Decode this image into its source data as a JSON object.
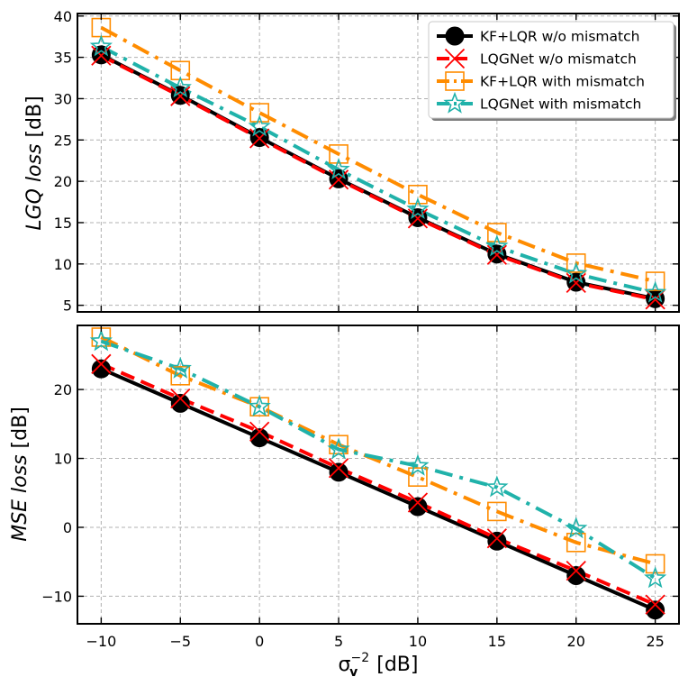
{
  "colors": {
    "kf_wo": "#000000",
    "lqg_wo": "#ff0000",
    "kf_with": "#ff8c00",
    "lqg_with": "#20b2aa",
    "grid": "#b0b0b0"
  },
  "chart_data": [
    {
      "type": "line",
      "panel": "top",
      "title": "",
      "xlabel": "",
      "ylabel": "LGQ loss [dB]",
      "ylabel_parts": {
        "italic": "LGQ loss",
        "plain": " [dB]"
      },
      "x": [
        -10,
        -5,
        0,
        5,
        10,
        15,
        20,
        25
      ],
      "xlim": [
        -11.5,
        26.5
      ],
      "ylim": [
        4.2,
        40.3
      ],
      "yticks": [
        5,
        10,
        15,
        20,
        25,
        30,
        35,
        40
      ],
      "grid": true,
      "legend_position": "top-right",
      "series": [
        {
          "name": "KF+LQR w/o mismatch",
          "values": [
            35.3,
            30.4,
            25.3,
            20.3,
            15.6,
            11.2,
            7.8,
            5.8
          ]
        },
        {
          "name": "LQGNet w/o mismatch",
          "values": [
            35.2,
            30.3,
            25.2,
            20.2,
            15.5,
            11.1,
            7.7,
            5.7
          ]
        },
        {
          "name": "KF+LQR with mismatch",
          "values": [
            38.6,
            33.4,
            28.3,
            23.3,
            18.4,
            13.8,
            10.1,
            7.9
          ]
        },
        {
          "name": "LQGNet with mismatch",
          "values": [
            36.3,
            31.3,
            26.6,
            21.4,
            16.6,
            12.1,
            8.8,
            6.5
          ]
        }
      ]
    },
    {
      "type": "line",
      "panel": "bottom",
      "title": "",
      "xlabel": "σv−2 [dB]",
      "xlabel_parts": {
        "sigma": "σ",
        "sub": "v",
        "sup": "−2",
        "unit": " [dB]"
      },
      "ylabel": "MSE loss [dB]",
      "ylabel_parts": {
        "italic": "MSE loss",
        "plain": " [dB]"
      },
      "x": [
        -10,
        -5,
        0,
        5,
        10,
        15,
        20,
        25
      ],
      "xticks": [
        -10,
        -5,
        0,
        5,
        10,
        15,
        20,
        25
      ],
      "xlim": [
        -11.5,
        26.5
      ],
      "ylim": [
        -14,
        29.3
      ],
      "yticks": [
        -10,
        0,
        10,
        20
      ],
      "grid": true,
      "series": [
        {
          "name": "KF+LQR w/o mismatch",
          "values": [
            23.0,
            18.0,
            13.0,
            8.0,
            3.0,
            -2.0,
            -7.0,
            -12.0
          ]
        },
        {
          "name": "LQGNet w/o mismatch",
          "values": [
            23.7,
            18.7,
            13.9,
            8.6,
            3.6,
            -1.6,
            -6.3,
            -11.2
          ]
        },
        {
          "name": "KF+LQR with mismatch",
          "values": [
            27.6,
            22.0,
            17.5,
            12.0,
            7.3,
            2.3,
            -2.2,
            -5.3
          ]
        },
        {
          "name": "LQGNet with mismatch",
          "values": [
            27.0,
            23.0,
            17.5,
            11.3,
            8.9,
            5.8,
            -0.2,
            -7.4
          ]
        }
      ]
    }
  ]
}
